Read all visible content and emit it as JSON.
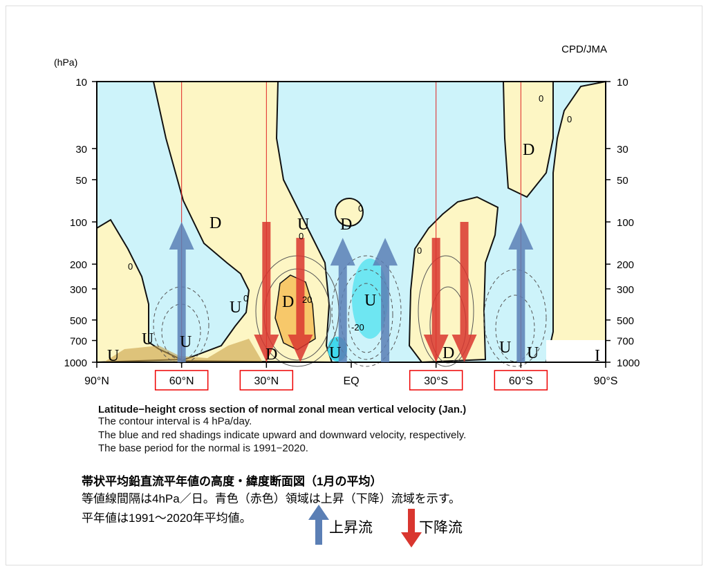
{
  "credit": "CPD/JMA",
  "chart_data": {
    "type": "contour",
    "yunit": "(hPa)",
    "yscale": "log",
    "ylim": [
      1000,
      10
    ],
    "yticks": [
      "10",
      "30",
      "50",
      "100",
      "200",
      "300",
      "500",
      "700",
      "1000"
    ],
    "yticks_values": [
      10,
      30,
      50,
      100,
      200,
      300,
      500,
      700,
      1000
    ],
    "xlim": [
      90,
      -90
    ],
    "xticks": [
      "90°N",
      "60°N",
      "30°N",
      "EQ",
      "30°S",
      "60°S",
      "90°S"
    ],
    "xticks_values": [
      90,
      60,
      30,
      0,
      -30,
      -60,
      -90
    ],
    "highlighted_xticks": [
      "60°N",
      "30°N",
      "30°S",
      "60°S"
    ],
    "contour_interval": 4,
    "contour_labels": [
      "0",
      "0",
      "0",
      "0",
      "0",
      "0",
      "0",
      "20",
      "-20",
      "0"
    ],
    "region_labels": [
      "D",
      "U",
      "D",
      "U",
      "D",
      "U",
      "D",
      "U",
      "U",
      "D",
      "D",
      "U",
      "U",
      "I",
      "U",
      "U"
    ],
    "colors": {
      "upward": "#a8f0f8",
      "strong_upward": "#40e0f0",
      "downward": "#fdf6c4",
      "strong_downward": "#f7c86a",
      "up_arrow": "#5b7fb5",
      "down_arrow": "#d9362f",
      "lat_line": "#e02020"
    },
    "up_arrows": [
      {
        "lat": 60,
        "from_hPa": 1000,
        "to_hPa": 100
      },
      {
        "lat": 3,
        "from_hPa": 1000,
        "to_hPa": 130
      },
      {
        "lat": -12,
        "from_hPa": 1000,
        "to_hPa": 130
      },
      {
        "lat": -60,
        "from_hPa": 1000,
        "to_hPa": 100
      }
    ],
    "down_arrows": [
      {
        "lat": 30,
        "from_hPa": 100,
        "to_hPa": 1000
      },
      {
        "lat": 18,
        "from_hPa": 130,
        "to_hPa": 1000
      },
      {
        "lat": -30,
        "from_hPa": 130,
        "to_hPa": 1000
      },
      {
        "lat": -40,
        "from_hPa": 100,
        "to_hPa": 1000
      }
    ]
  },
  "caption": {
    "title": "Latitude−height cross section of normal zonal mean vertical velocity (Jan.)",
    "line1": "The contour interval is 4 hPa/day.",
    "line2": "The blue and red shadings indicate upward and downward velocity, respectively.",
    "line3": "The base period for the normal is 1991−2020."
  },
  "jp": {
    "title": "帯状平均鉛直流平年値の高度・緯度断面図（1月の平均）",
    "line1": "等値線間隔は4hPa／日。青色（赤色）領域は上昇（下降）流域を示す。",
    "line2": "平年値は1991〜2020年平均値。",
    "legend_up": "上昇流",
    "legend_down": "下降流"
  }
}
